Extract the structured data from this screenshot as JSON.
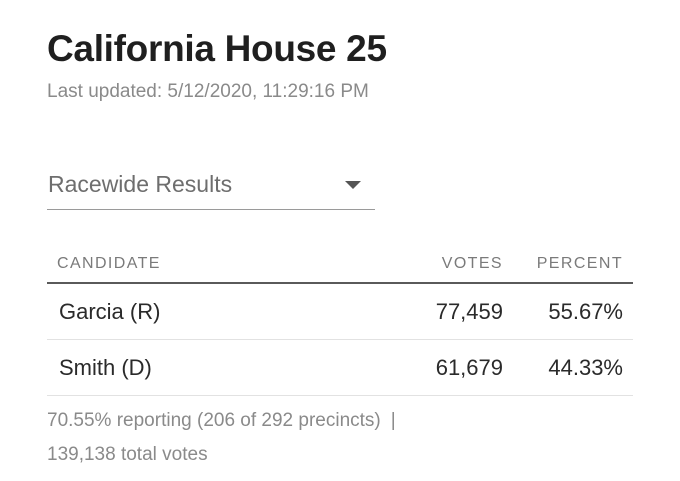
{
  "race": {
    "title": "California House 25",
    "last_updated": "Last updated: 5/12/2020, 11:29:16 PM"
  },
  "view_select": {
    "selected": "Racewide Results"
  },
  "table": {
    "headers": {
      "candidate": "CANDIDATE",
      "votes": "VOTES",
      "percent": "PERCENT"
    },
    "rows": [
      {
        "candidate": "Garcia (R)",
        "votes": "77,459",
        "percent": "55.67%"
      },
      {
        "candidate": "Smith (D)",
        "votes": "61,679",
        "percent": "44.33%"
      }
    ]
  },
  "footer": {
    "reporting": "70.55% reporting (206 of 292 precincts)",
    "separator": "|",
    "total_votes": "139,138 total votes"
  },
  "colors": {
    "text": "#222222",
    "muted": "#8a8a8a",
    "rule": "#5a5a5a"
  }
}
